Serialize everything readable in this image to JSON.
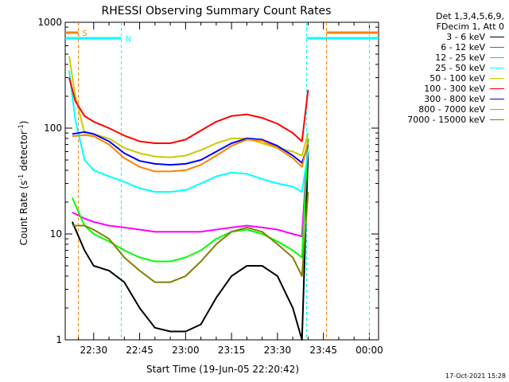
{
  "chart_data": {
    "type": "line",
    "title": "RHESSI Observing Summary Count Rates",
    "xlabel": "Start Time (19-Jun-05 22:20:42)",
    "ylabel": "Count Rate (s",
    "ylabel_sup": "-1",
    "ylabel_mid": " detector",
    "ylabel_sup2": "-1",
    "ylabel_end": ")",
    "yscale": "log",
    "ylim": [
      1,
      1000
    ],
    "xlim": [
      "22:20:42",
      "00:03:00"
    ],
    "x_ticks": [
      "22:30",
      "22:45",
      "23:00",
      "23:15",
      "23:30",
      "23:45",
      "00:00"
    ],
    "y_ticks": [
      "1",
      "10",
      "100",
      "1000"
    ],
    "markers": [
      {
        "label": "S",
        "color": "#ff8000",
        "times": [
          "22:25:00",
          "23:46:00"
        ]
      },
      {
        "label": "N",
        "color": "#00ffff",
        "times": [
          "22:39:00",
          "23:39:30",
          "00:00:00"
        ]
      }
    ],
    "series": [
      {
        "name": "3 - 6 keV",
        "color": "#000000",
        "x": [
          "22:23",
          "22:27",
          "22:30",
          "22:35",
          "22:40",
          "22:45",
          "22:50",
          "22:55",
          "23:00",
          "23:05",
          "23:10",
          "23:15",
          "23:20",
          "23:25",
          "23:30",
          "23:35",
          "23:38",
          "23:40"
        ],
        "values": [
          13,
          7,
          5,
          4.5,
          3.5,
          2,
          1.3,
          1.2,
          1.2,
          1.4,
          2.5,
          4,
          5,
          5,
          4,
          2,
          1,
          60
        ]
      },
      {
        "name": "6 - 12 keV",
        "color": "#ff00ff",
        "x": [
          "22:23",
          "22:27",
          "22:30",
          "22:35",
          "22:40",
          "22:45",
          "22:50",
          "22:55",
          "23:00",
          "23:05",
          "23:10",
          "23:15",
          "23:20",
          "23:25",
          "23:30",
          "23:35",
          "23:38",
          "23:40"
        ],
        "values": [
          16,
          14,
          13,
          12,
          11.5,
          11,
          10.5,
          10.5,
          10.5,
          10.5,
          11,
          11.5,
          12,
          11.5,
          11,
          10,
          9.5,
          80
        ]
      },
      {
        "name": "12 - 25 keV",
        "color": "#00ff00",
        "x": [
          "22:23",
          "22:27",
          "22:30",
          "22:35",
          "22:40",
          "22:45",
          "22:50",
          "22:55",
          "23:00",
          "23:05",
          "23:10",
          "23:15",
          "23:20",
          "23:25",
          "23:30",
          "23:35",
          "23:38",
          "23:40"
        ],
        "values": [
          22,
          12,
          10,
          8.5,
          7,
          6,
          5.5,
          5.5,
          6,
          7,
          9,
          10.5,
          11,
          10,
          8.5,
          7,
          6,
          80
        ]
      },
      {
        "name": "25 - 50 keV",
        "color": "#00ffff",
        "x": [
          "22:22",
          "22:24",
          "22:27",
          "22:30",
          "22:35",
          "22:40",
          "22:45",
          "22:50",
          "22:55",
          "23:00",
          "23:05",
          "23:10",
          "23:15",
          "23:20",
          "23:25",
          "23:30",
          "23:35",
          "23:38",
          "23:40"
        ],
        "values": [
          350,
          120,
          50,
          40,
          35,
          31,
          27,
          25,
          25,
          26,
          30,
          35,
          38,
          37,
          33,
          30,
          28,
          25,
          60
        ]
      },
      {
        "name": "50 - 100 keV",
        "color": "#cccc00",
        "x": [
          "22:22",
          "22:24",
          "22:27",
          "22:30",
          "22:35",
          "22:40",
          "22:45",
          "22:50",
          "22:55",
          "23:00",
          "23:05",
          "23:10",
          "23:15",
          "23:20",
          "23:25",
          "23:30",
          "23:35",
          "23:38",
          "23:40"
        ],
        "values": [
          480,
          200,
          90,
          88,
          80,
          65,
          58,
          54,
          53,
          55,
          62,
          72,
          80,
          80,
          72,
          65,
          60,
          55,
          90
        ]
      },
      {
        "name": "100 - 300 keV",
        "color": "#ff0000",
        "x": [
          "22:22",
          "22:24",
          "22:27",
          "22:30",
          "22:35",
          "22:40",
          "22:45",
          "22:50",
          "22:55",
          "23:00",
          "23:05",
          "23:10",
          "23:15",
          "23:20",
          "23:25",
          "23:30",
          "23:35",
          "23:38",
          "23:40"
        ],
        "values": [
          300,
          180,
          130,
          115,
          100,
          85,
          75,
          72,
          72,
          78,
          95,
          115,
          130,
          135,
          125,
          110,
          90,
          75,
          230
        ]
      },
      {
        "name": "300 - 800 keV",
        "color": "#0000ff",
        "x": [
          "22:23",
          "22:27",
          "22:30",
          "22:35",
          "22:40",
          "22:45",
          "22:50",
          "22:55",
          "23:00",
          "23:05",
          "23:10",
          "23:15",
          "23:20",
          "23:25",
          "23:30",
          "23:35",
          "23:38",
          "23:40"
        ],
        "values": [
          88,
          92,
          88,
          75,
          58,
          49,
          46,
          45,
          46,
          50,
          60,
          72,
          80,
          78,
          68,
          55,
          47,
          70
        ]
      },
      {
        "name": "800 - 7000 keV",
        "color": "#ff8000",
        "x": [
          "22:23",
          "22:27",
          "22:30",
          "22:35",
          "22:40",
          "22:45",
          "22:50",
          "22:55",
          "23:00",
          "23:05",
          "23:10",
          "23:15",
          "23:20",
          "23:25",
          "23:30",
          "23:35",
          "23:38",
          "23:40"
        ],
        "values": [
          84,
          86,
          84,
          70,
          52,
          43,
          39,
          39,
          40,
          45,
          55,
          68,
          78,
          76,
          65,
          52,
          43,
          75
        ]
      },
      {
        "name": "7000 - 15000 keV",
        "color": "#808000",
        "x": [
          "22:23",
          "22:27",
          "22:30",
          "22:35",
          "22:40",
          "22:45",
          "22:50",
          "22:55",
          "23:00",
          "23:05",
          "23:10",
          "23:15",
          "23:20",
          "23:25",
          "23:30",
          "23:35",
          "23:38",
          "23:40"
        ],
        "values": [
          12,
          12,
          11,
          9,
          6,
          4.5,
          3.5,
          3.5,
          4,
          5.5,
          8,
          10.5,
          11.5,
          10.5,
          8,
          6,
          4,
          25
        ]
      }
    ]
  },
  "legend": {
    "header1": "Det 1,3,4,5,6,9,",
    "header2": "FDecim 1, Att 0"
  },
  "footer": {
    "timestamp": "17-Oct-2021 15:28"
  }
}
